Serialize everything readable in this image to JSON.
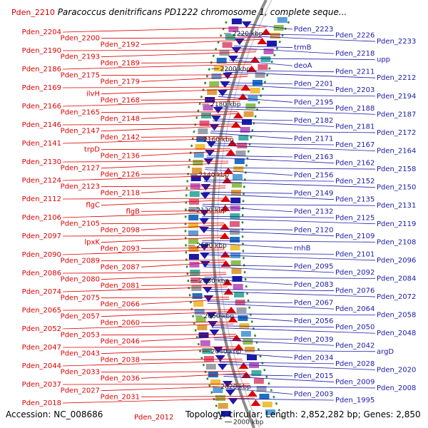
{
  "title": {
    "id": "Pden_2210",
    "organism": "Paracoccus denitrificans PD1222 chromosome 1, complete seque..."
  },
  "footer": {
    "accession": "Accession: NC_008686",
    "topology": "Topology: circular; Length: 2,852,282 bp; Genes: 2,850",
    "last_label": "Pden_2012"
  },
  "colors": {
    "left_genes": "#dd0000",
    "right_genes": "#1a1aa8",
    "backbone": "#8c8c8c",
    "tick": "#2e8b2e"
  },
  "kbp_ticks": [
    "2220 kbp",
    "2200 kbp",
    "2180 kbp",
    "2160 kbp",
    "2140 kbp",
    "2120 kbp",
    "2100 kbp",
    "2080 kbp",
    "2060 kbp",
    "2040 kbp",
    "2020 kbp",
    "2000 kbp"
  ],
  "left_labels": [
    "Pden_2204",
    "Pden_2200",
    "Pden_2192",
    "Pden_2190",
    "Pden_2193",
    "Pden_2189",
    "Pden_2186",
    "Pden_2175",
    "Pden_2179",
    "Pden_2169",
    "ilvH",
    "Pden_2168",
    "Pden_2166",
    "Pden_2165",
    "Pden_2148",
    "Pden_2146",
    "Pden_2147",
    "Pden_2142",
    "Pden_2141",
    "trpD",
    "Pden_2136",
    "Pden_2130",
    "Pden_2127",
    "Pden_2126",
    "Pden_2124",
    "Pden_2123",
    "Pden_2118",
    "Pden_2112",
    "flgC",
    "flgB",
    "Pden_2106",
    "Pden_2105",
    "Pden_2098",
    "Pden_2097",
    "lpxK",
    "Pden_2093",
    "Pden_2090",
    "Pden_2089",
    "Pden_2087",
    "Pden_2086",
    "Pden_2080",
    "Pden_2081",
    "Pden_2074",
    "Pden_2075",
    "Pden_2066",
    "Pden_2065",
    "Pden_2057",
    "Pden_2060",
    "Pden_2052",
    "Pden_2053",
    "Pden_2046",
    "Pden_2047",
    "Pden_2043",
    "Pden_2038",
    "Pden_2044",
    "Pden_2033",
    "Pden_2036",
    "Pden_2037",
    "Pden_2027",
    "Pden_2031",
    "Pden_2018"
  ],
  "right_labels": [
    "Pden_2223",
    "Pden_2226",
    "Pden_2233",
    "trmB",
    "Pden_2218",
    "upp",
    "deoA",
    "Pden_2211",
    "Pden_2212",
    "Pden_2201",
    "Pden_2203",
    "Pden_2194",
    "Pden_2195",
    "Pden_2188",
    "Pden_2187",
    "Pden_2182",
    "Pden_2181",
    "Pden_2172",
    "Pden_2171",
    "Pden_2167",
    "Pden_2164",
    "Pden_2163",
    "Pden_2162",
    "Pden_2158",
    "Pden_2156",
    "Pden_2152",
    "Pden_2150",
    "Pden_2149",
    "Pden_2135",
    "Pden_2131",
    "Pden_2132",
    "Pden_2125",
    "Pden_2119",
    "Pden_2120",
    "Pden_2109",
    "Pden_2108",
    "rnhB",
    "Pden_2101",
    "Pden_2096",
    "Pden_2095",
    "Pden_2092",
    "Pden_2084",
    "Pden_2083",
    "Pden_2076",
    "Pden_2072",
    "Pden_2067",
    "Pden_2064",
    "Pden_2058",
    "Pden_2056",
    "Pden_2050",
    "Pden_2048",
    "Pden_2039",
    "Pden_2042",
    "argD",
    "Pden_2034",
    "Pden_2028",
    "Pden_2020",
    "Pden_2015",
    "Pden_2009",
    "Pden_2008",
    "Pden_2003",
    "Pden_1995"
  ]
}
